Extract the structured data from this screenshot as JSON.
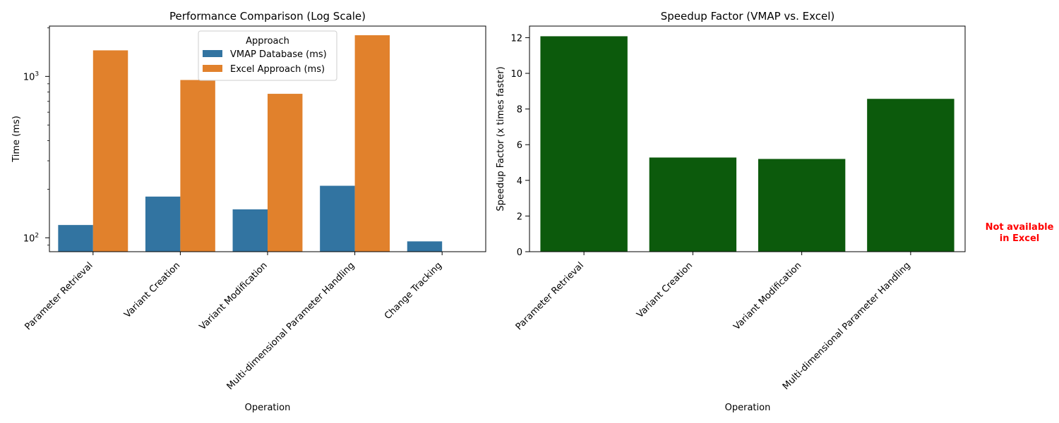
{
  "colors": {
    "vmap": "#3274a1",
    "excel": "#e1812c",
    "speedup": "#0c5a0c",
    "note": "#ff0000",
    "axis": "#000000"
  },
  "chart_data": [
    {
      "type": "bar",
      "title": "Performance Comparison (Log Scale)",
      "xlabel": "Operation",
      "ylabel": "Time (ms)",
      "yscale": "log",
      "ylim": [
        82,
        2050
      ],
      "yticks": [
        {
          "value": 100,
          "label": "10^2"
        },
        {
          "value": 1000,
          "label": "10^3"
        }
      ],
      "categories": [
        "Parameter Retrieval",
        "Variant Creation",
        "Variant Modification",
        "Multi-dimensional Parameter Handling",
        "Change Tracking"
      ],
      "series": [
        {
          "name": "VMAP Database (ms)",
          "values": [
            120,
            180,
            150,
            210,
            95
          ]
        },
        {
          "name": "Excel Approach (ms)",
          "values": [
            1450,
            950,
            780,
            1800,
            null
          ]
        }
      ],
      "legend": {
        "title": "Approach",
        "placement": "top-center"
      },
      "grid": false
    },
    {
      "type": "bar",
      "title": "Speedup Factor (VMAP vs. Excel)",
      "xlabel": "Operation",
      "ylabel": "Speedup Factor (x times faster)",
      "ylim": [
        0,
        12.65
      ],
      "yticks": [
        0,
        2,
        4,
        6,
        8,
        10,
        12
      ],
      "categories": [
        "Parameter Retrieval",
        "Variant Creation",
        "Variant Modification",
        "Multi-dimensional Parameter Handling"
      ],
      "values": [
        12.08,
        5.28,
        5.2,
        8.57
      ],
      "annotation": {
        "line1": "Not available",
        "line2": "in Excel",
        "placement": "right of chart"
      },
      "grid": false
    }
  ]
}
